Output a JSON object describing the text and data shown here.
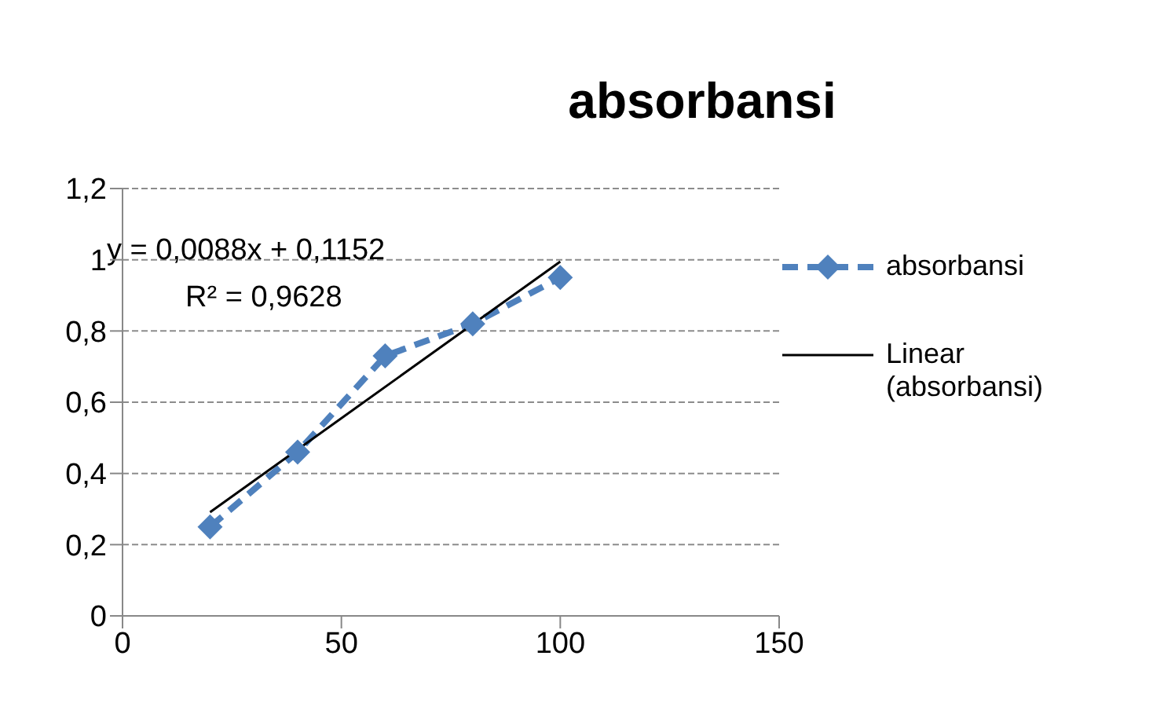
{
  "chart_data": {
    "type": "line",
    "title": "absorbansi",
    "xlim": [
      0,
      150
    ],
    "xticks": [
      0,
      50,
      100,
      150
    ],
    "ylim": [
      0,
      1.2
    ],
    "yticks": [
      0,
      {
        "value": 0.2,
        "label": "0,2"
      },
      {
        "value": 0.4,
        "label": "0,4"
      },
      {
        "value": 0.6,
        "label": "0,6"
      },
      {
        "value": 0.8,
        "label": "0,8"
      },
      1,
      {
        "value": 1.2,
        "label": "1,2"
      }
    ],
    "grid": "y",
    "legend": "right",
    "series": [
      {
        "name": "absorbansi",
        "color": "#4f81bd",
        "x": [
          20,
          40,
          60,
          80,
          100
        ],
        "values": [
          0.25,
          0.46,
          0.73,
          0.82,
          0.95
        ],
        "marker": "diamond",
        "line_style": "dashed"
      },
      {
        "name": "Linear (absorbansi)",
        "color": "#000000",
        "x": [
          20,
          100
        ],
        "values": [
          0.291,
          0.995
        ],
        "marker": "none",
        "line_style": "solid"
      }
    ],
    "annotations": [
      "y = 0,0088x + 0,1152",
      "R² = 0,9628"
    ]
  }
}
